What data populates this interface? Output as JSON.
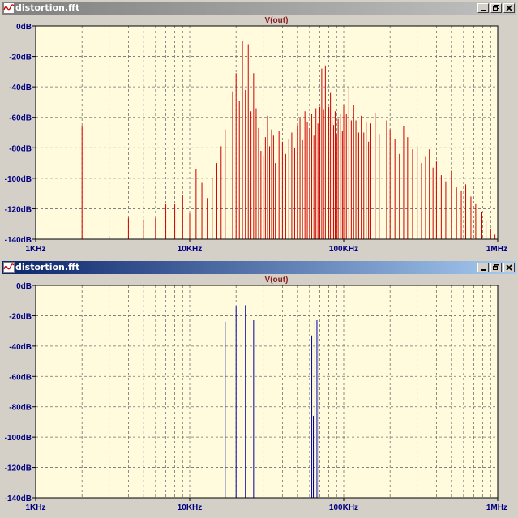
{
  "colors": {
    "plot_bg": "#fffbdc",
    "grid": "#707070",
    "label": "#000080",
    "series_top": "#cc0000",
    "series_bottom": "#0000aa",
    "trace_title": "#8b1a1a"
  },
  "windows": [
    {
      "title": "distortion.fft",
      "active": false,
      "buttons": [
        "minimize-icon",
        "restore-icon",
        "close-icon"
      ]
    },
    {
      "title": "distortion.fft",
      "active": true,
      "buttons": [
        "minimize-icon",
        "restore-icon",
        "close-icon"
      ]
    }
  ],
  "chart_data": [
    {
      "type": "line",
      "title": "V(out)",
      "xscale": "log",
      "xlim": [
        "1KHz",
        "1MHz"
      ],
      "x_ticks": [
        "1KHz",
        "10KHz",
        "100KHz",
        "1MHz"
      ],
      "ylim": [
        -140,
        0
      ],
      "y_ticks": [
        "0dB",
        "-20dB",
        "-40dB",
        "-60dB",
        "-80dB",
        "-100dB",
        "-120dB",
        "-140dB"
      ],
      "grid": true,
      "series": [
        {
          "name": "V(out)",
          "color": "#cc0000",
          "spikes": [
            [
              1000,
              -71
            ],
            [
              2000,
              -66
            ],
            [
              3000,
              -138
            ],
            [
              4000,
              -126
            ],
            [
              5000,
              -127
            ],
            [
              6000,
              -126
            ],
            [
              7000,
              -117
            ],
            [
              8000,
              -117
            ],
            [
              9000,
              -111
            ],
            [
              10000,
              -123
            ],
            [
              11000,
              -94
            ],
            [
              12000,
              -103
            ],
            [
              13000,
              -113
            ],
            [
              14000,
              -100
            ],
            [
              15000,
              -90
            ],
            [
              16000,
              -79
            ],
            [
              17000,
              -68
            ],
            [
              18000,
              -52
            ],
            [
              19000,
              -43
            ],
            [
              20000,
              -31
            ],
            [
              21000,
              -49
            ],
            [
              22000,
              -10
            ],
            [
              23000,
              -42
            ],
            [
              24000,
              -12
            ],
            [
              25000,
              -56
            ],
            [
              26000,
              -31
            ],
            [
              27000,
              -54
            ],
            [
              28000,
              -67
            ],
            [
              29000,
              -82
            ],
            [
              30000,
              -85
            ],
            [
              31000,
              -73
            ],
            [
              32000,
              -59
            ],
            [
              33000,
              -79
            ],
            [
              34000,
              -68
            ],
            [
              35000,
              -72
            ],
            [
              36000,
              -90
            ],
            [
              38000,
              -69
            ],
            [
              40000,
              -76
            ],
            [
              42000,
              -84
            ],
            [
              44000,
              -74
            ],
            [
              46000,
              -70
            ],
            [
              48000,
              -80
            ],
            [
              50000,
              -66
            ],
            [
              52000,
              -60
            ],
            [
              54000,
              -75
            ],
            [
              56000,
              -56
            ],
            [
              58000,
              -63
            ],
            [
              60000,
              -67
            ],
            [
              62000,
              -58
            ],
            [
              64000,
              -72
            ],
            [
              66000,
              -54
            ],
            [
              68000,
              -64
            ],
            [
              70000,
              -53
            ],
            [
              72000,
              -28
            ],
            [
              74000,
              -55
            ],
            [
              76000,
              -26
            ],
            [
              78000,
              -60
            ],
            [
              80000,
              -53
            ],
            [
              82000,
              -44
            ],
            [
              84000,
              -62
            ],
            [
              86000,
              -65
            ],
            [
              88000,
              -56
            ],
            [
              90000,
              -71
            ],
            [
              92000,
              -61
            ],
            [
              95000,
              -58
            ],
            [
              98000,
              -69
            ],
            [
              100000,
              -52
            ],
            [
              104000,
              -58
            ],
            [
              108000,
              -40
            ],
            [
              112000,
              -62
            ],
            [
              116000,
              -52
            ],
            [
              120000,
              -62
            ],
            [
              125000,
              -70
            ],
            [
              130000,
              -59
            ],
            [
              135000,
              -70
            ],
            [
              140000,
              -63
            ],
            [
              145000,
              -76
            ],
            [
              150000,
              -64
            ],
            [
              160000,
              -57
            ],
            [
              170000,
              -71
            ],
            [
              180000,
              -77
            ],
            [
              190000,
              -62
            ],
            [
              200000,
              -68
            ],
            [
              215000,
              -74
            ],
            [
              230000,
              -84
            ],
            [
              245000,
              -66
            ],
            [
              260000,
              -73
            ],
            [
              280000,
              -81
            ],
            [
              300000,
              -79
            ],
            [
              320000,
              -90
            ],
            [
              340000,
              -86
            ],
            [
              360000,
              -81
            ],
            [
              380000,
              -93
            ],
            [
              400000,
              -89
            ],
            [
              430000,
              -98
            ],
            [
              460000,
              -102
            ],
            [
              500000,
              -95
            ],
            [
              540000,
              -106
            ],
            [
              580000,
              -108
            ],
            [
              620000,
              -104
            ],
            [
              670000,
              -112
            ],
            [
              720000,
              -117
            ],
            [
              780000,
              -122
            ],
            [
              840000,
              -128
            ],
            [
              900000,
              -133
            ],
            [
              960000,
              -137
            ]
          ]
        }
      ]
    },
    {
      "type": "line",
      "title": "V(out)",
      "xscale": "log",
      "xlim": [
        "1KHz",
        "1MHz"
      ],
      "x_ticks": [
        "1KHz",
        "10KHz",
        "100KHz",
        "1MHz"
      ],
      "ylim": [
        -140,
        0
      ],
      "y_ticks": [
        "0dB",
        "-20dB",
        "-40dB",
        "-60dB",
        "-80dB",
        "-100dB",
        "-120dB",
        "-140dB"
      ],
      "grid": true,
      "series": [
        {
          "name": "V(out)",
          "color": "#0000aa",
          "spikes": [
            [
              17000,
              -24
            ],
            [
              20000,
              -14
            ],
            [
              23000,
              -13
            ],
            [
              26000,
              -23
            ],
            [
              62000,
              -33
            ],
            [
              63500,
              -86
            ],
            [
              65000,
              -23
            ],
            [
              67000,
              -23
            ],
            [
              69000,
              -33
            ]
          ]
        }
      ]
    }
  ]
}
